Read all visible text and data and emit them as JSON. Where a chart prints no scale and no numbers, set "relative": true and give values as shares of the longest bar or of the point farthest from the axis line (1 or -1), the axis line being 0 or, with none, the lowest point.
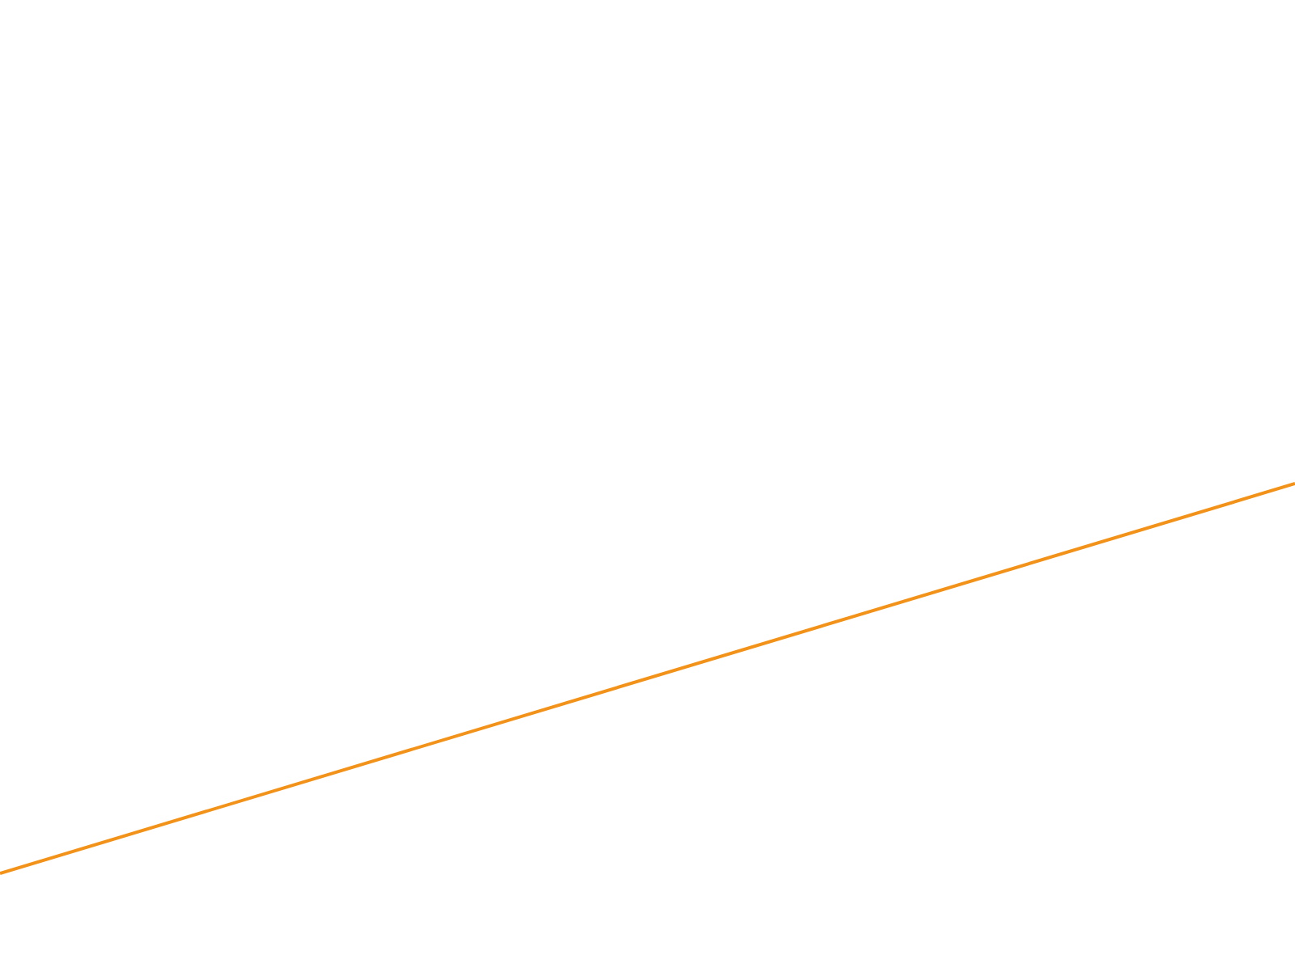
{
  "chart_data": {
    "type": "line",
    "relative": true,
    "categories": [
      null,
      null
    ],
    "values": [
      0,
      1
    ],
    "color": "#f39219"
  }
}
